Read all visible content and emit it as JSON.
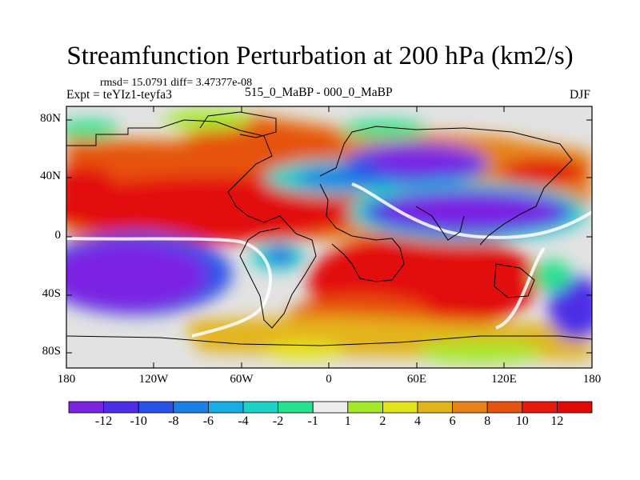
{
  "title": "Streamfunction Perturbation at 200 hPa (km2/s)",
  "stats": "rmsd= 15.0791 diff= 3.47377e-08",
  "expt": "Expt = teYIz1-teyfa3",
  "case": "515_0_MaBP - 000_0_MaBP",
  "season": "DJF",
  "y_ticks": [
    "80N",
    "40N",
    "0",
    "40S",
    "80S"
  ],
  "x_ticks": [
    "180",
    "120W",
    "60W",
    "0",
    "60E",
    "120E",
    "180"
  ],
  "colorbar": {
    "labels": [
      "-12",
      "-10",
      "-8",
      "-6",
      "-4",
      "-2",
      "-1",
      "1",
      "2",
      "4",
      "6",
      "8",
      "10",
      "12"
    ],
    "colors": [
      "#7b22e3",
      "#4d2ee6",
      "#2a52e8",
      "#1c7fe6",
      "#16aee5",
      "#1cd2c6",
      "#28e18c",
      "#ececec",
      "#a4e82a",
      "#e4e41a",
      "#e3b41a",
      "#e68216",
      "#e6520f",
      "#e61a0a",
      "#e20808"
    ]
  },
  "map": {
    "projection": "cylindrical-equidistant",
    "lon_range": [
      -180,
      180
    ],
    "lat_range": [
      -90,
      90
    ],
    "background_color": "#e2e2e2"
  }
}
